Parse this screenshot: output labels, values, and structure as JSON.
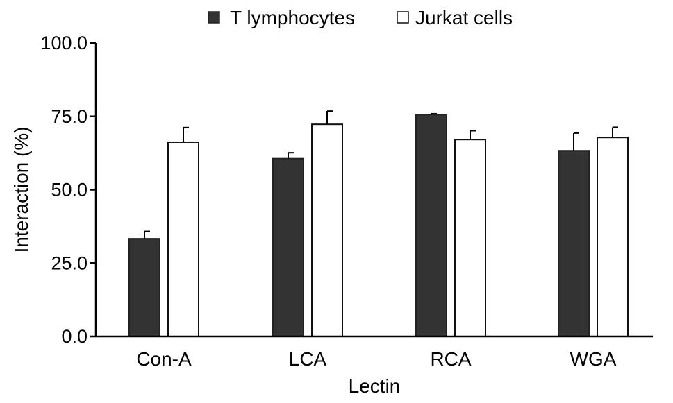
{
  "chart_data": {
    "type": "bar",
    "categories": [
      "Con-A",
      "LCA",
      "RCA",
      "WGA"
    ],
    "series": [
      {
        "name": "T lymphocytes",
        "values": [
          33.3,
          60.6,
          75.6,
          63.3
        ],
        "errors": [
          2.5,
          2.0,
          0.3,
          6.0
        ],
        "color": "#333333"
      },
      {
        "name": "Jurkat cells",
        "values": [
          66.2,
          72.3,
          67.1,
          67.8
        ],
        "errors": [
          5.0,
          4.5,
          3.0,
          3.5
        ],
        "color": "#ffffff"
      }
    ],
    "xlabel": "Lectin",
    "ylabel": "Interaction (%)",
    "ylim": [
      0,
      100
    ],
    "yticks": [
      "0.0",
      "25.0",
      "50.0",
      "75.0",
      "100.0"
    ],
    "grid": false,
    "legend_position": "top-center"
  }
}
